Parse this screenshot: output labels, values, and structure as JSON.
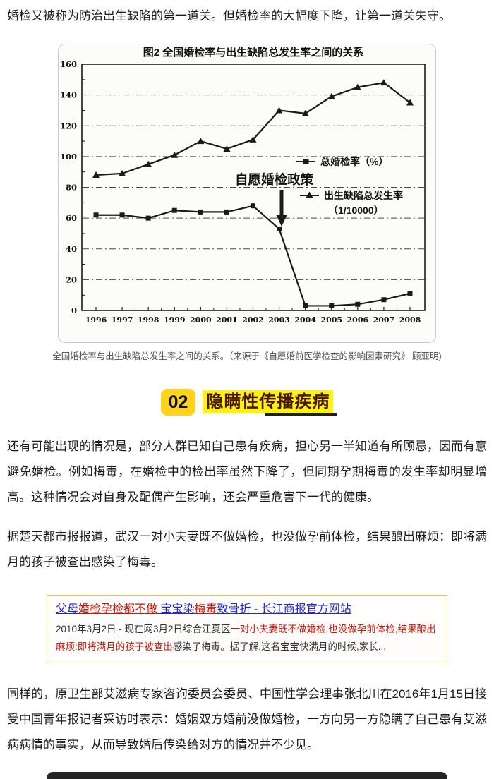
{
  "page": {
    "intro": "婚检又被称为防治出生缺陷的第一道关。但婚检率的大幅度下降，让第一道关失守。",
    "figure_caption": "全国婚检率与出生缺陷总发生率之间的关系。（来源于《自愿婚前医学检查的影响因素研究》 顾亚明)",
    "section": {
      "number": "02",
      "title": "隐瞒性传播疾病"
    },
    "paragraphs": [
      "还有可能出现的情况是，部分人群已知自己患有疾病，担心另一半知道有所顾忌，因而有意避免婚检。例如梅毒，在婚检中的检出率虽然下降了，但同期孕期梅毒的发生率却明显增高。这种情况会对自身及配偶产生影响，还会严重危害下一代的健康。",
      "据楚天都市报报道，武汉一对小夫妻既不做婚检，也没做孕前体检，结果酿出麻烦：即将满月的孩子被查出感染了梅毒。",
      "同样的，原卫生部艾滋病专家咨询委员会委员、中国性学会理事张北川在2016年1月15日接受中国青年报记者采访时表示：婚姻双方婚前没做婚检，一方向另一方隐瞒了自己患有艾滋病病情的事实，从而导致婚后传染给对方的情况并不少见。"
    ],
    "search_result": {
      "title_parts": [
        {
          "text": "父母",
          "color": "blue"
        },
        {
          "text": "婚检孕检都不做",
          "color": "red"
        },
        {
          "text": " 宝宝染",
          "color": "blue"
        },
        {
          "text": "梅毒",
          "color": "red"
        },
        {
          "text": "致骨折 - 长江商报官方网站",
          "color": "blue"
        }
      ],
      "snippet_parts": [
        {
          "text": "2010年3月2日 - 现在网3月2日综合江夏区",
          "color": "black"
        },
        {
          "text": "一对小夫妻既不做婚检,也没做孕前体检,结果酿出麻烦:即将满月的孩子被查出",
          "color": "red"
        },
        {
          "text": "感染了梅毒。据了解,这名宝宝快满月的时候,家长...",
          "color": "black"
        }
      ],
      "colors": {
        "blue": "#2126cd",
        "red": "#cb1407",
        "black": "#333333"
      },
      "card_border": "#e7c55e"
    },
    "accent_colors": {
      "badge_yellow": "#ffd21e",
      "highlight_yellow": "#fff212",
      "section_text": "#4a1500"
    }
  },
  "chart_data": {
    "type": "line",
    "title": "图2  全国婚检率与出生缺陷总发生率之间的关系",
    "x": [
      1996,
      1997,
      1998,
      1999,
      2000,
      2001,
      2002,
      2003,
      2004,
      2005,
      2006,
      2007,
      2008
    ],
    "series": [
      {
        "name": "总婚检率（%）",
        "marker": "square",
        "values": [
          62,
          62,
          60,
          65,
          64,
          64,
          68,
          53,
          3,
          3,
          4,
          7,
          11
        ]
      },
      {
        "name": "出生缺陷总发生率（1/10000）",
        "marker": "triangle",
        "values": [
          88,
          89,
          95,
          101,
          110,
          105,
          111,
          130,
          128,
          139,
          145,
          148,
          135
        ]
      }
    ],
    "xlabel": "",
    "ylabel": "",
    "ylim": [
      0,
      160
    ],
    "ytick_step": 20,
    "grid": "horizontal dash-dot",
    "legend_position": "middle-right",
    "legend_lines": [
      "总婚检率（%）",
      "出生缺陷总发生率",
      "（1/10000）"
    ],
    "annotation": {
      "text": "自愿婚检政策",
      "arrow": "down",
      "x_year": 2003
    },
    "line_color": "#1a1a1a"
  }
}
